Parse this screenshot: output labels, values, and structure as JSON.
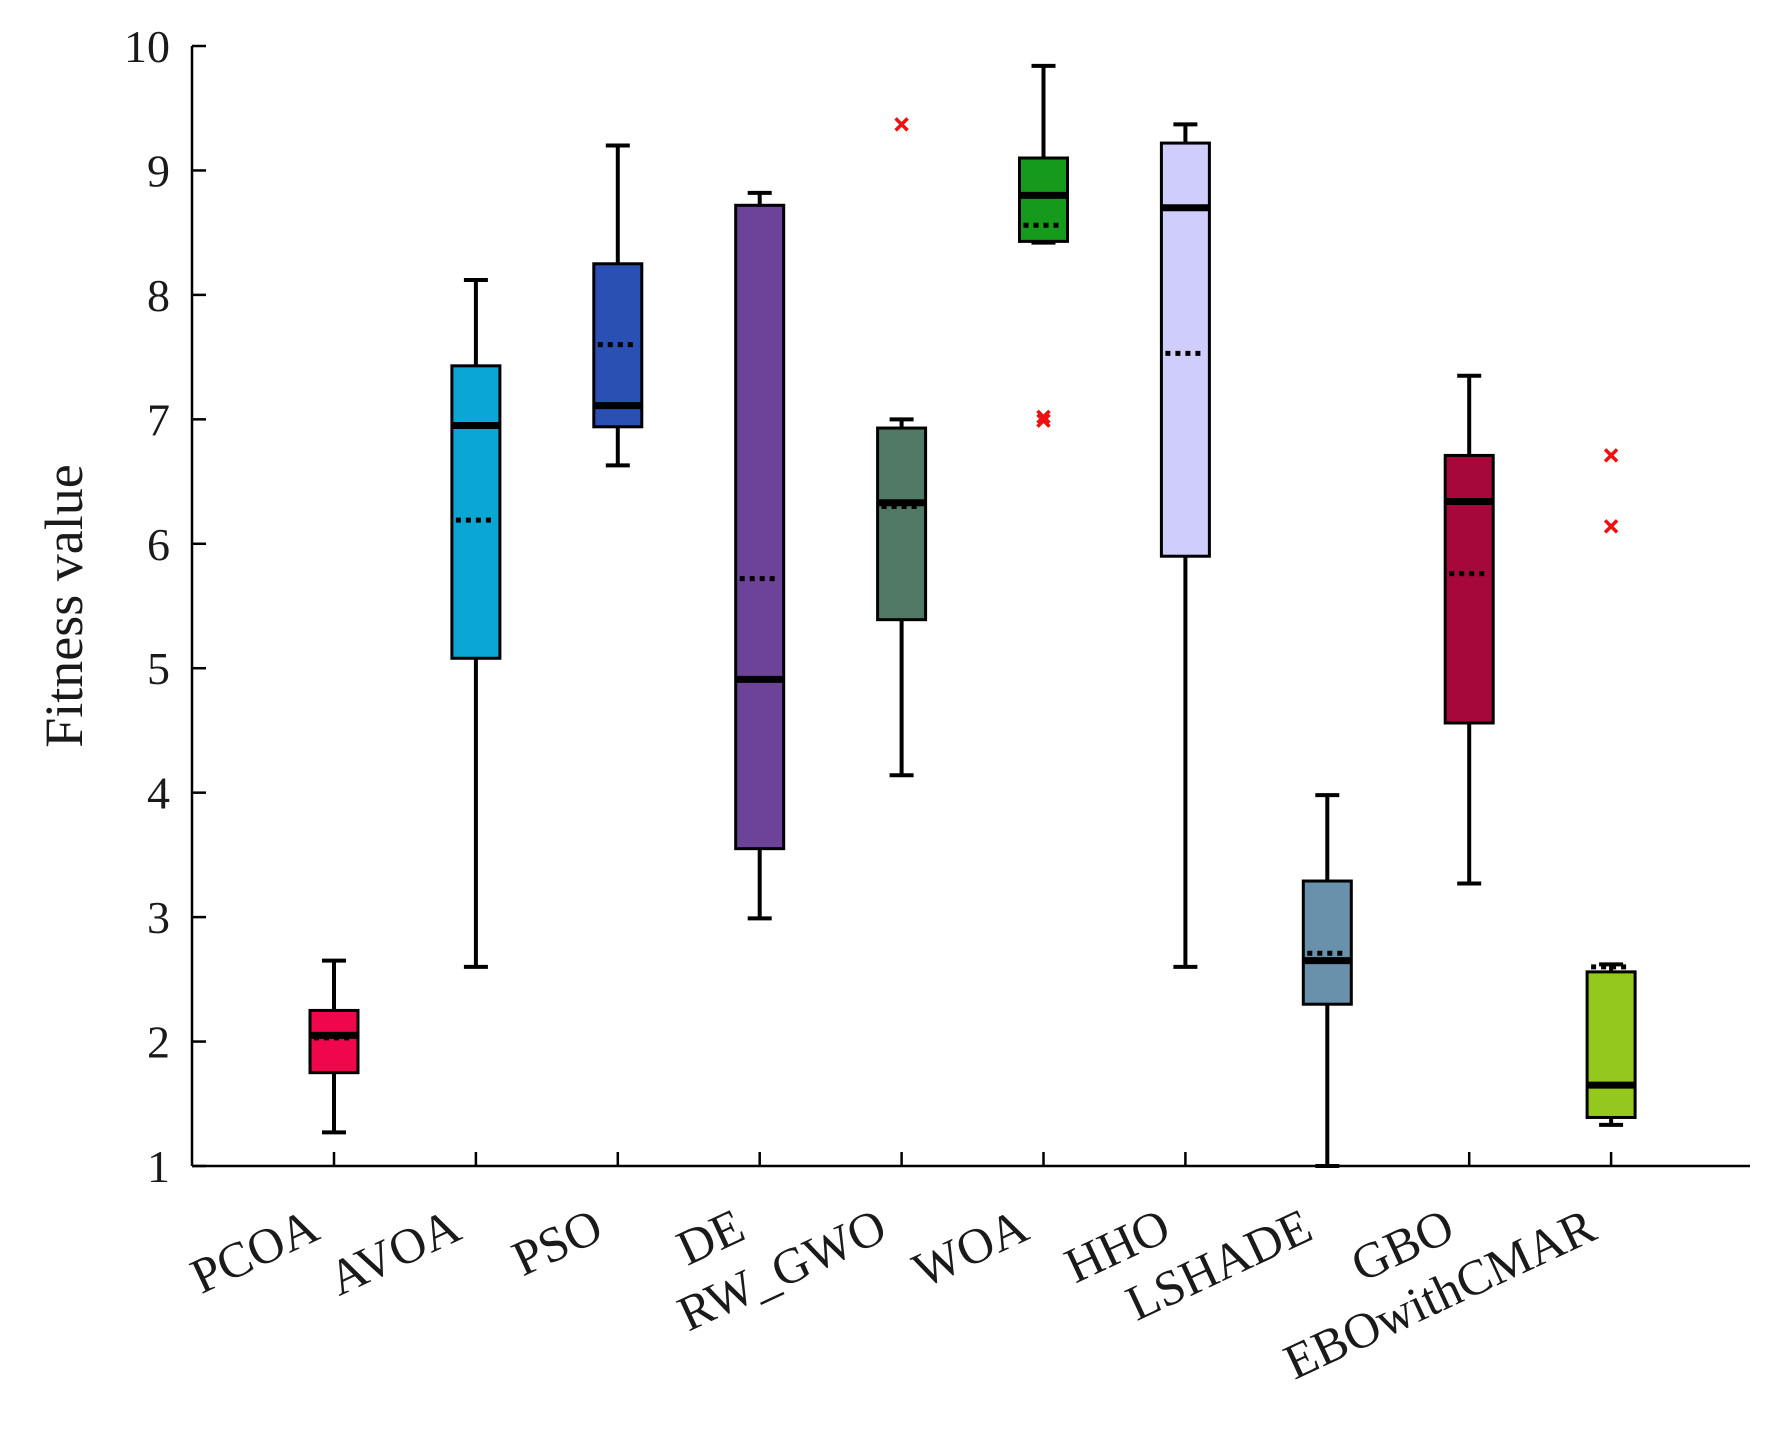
{
  "chart_data": {
    "type": "boxplot",
    "title": "",
    "xlabel": "",
    "ylabel": "Fitness value",
    "ylim": [
      1,
      10
    ],
    "yticks": [
      "1",
      "2",
      "3",
      "4",
      "5",
      "6",
      "7",
      "8",
      "9",
      "10"
    ],
    "categories": [
      "PCOA",
      "AVOA",
      "PSO",
      "DE",
      "RW_GWO",
      "WOA",
      "HHO",
      "LSHADE",
      "GBO",
      "EBOwithCMAR"
    ],
    "boxes": [
      {
        "name": "PCOA",
        "color": "#f0064a",
        "min": 1.27,
        "q1": 1.75,
        "median": 2.05,
        "mean": 2.03,
        "q3": 2.25,
        "max": 2.65,
        "outliers": []
      },
      {
        "name": "AVOA",
        "color": "#0aa6d4",
        "min": 2.6,
        "q1": 5.08,
        "median": 6.95,
        "mean": 6.19,
        "q3": 7.43,
        "max": 8.12,
        "outliers": []
      },
      {
        "name": "PSO",
        "color": "#2a50b4",
        "min": 6.63,
        "q1": 6.94,
        "median": 7.11,
        "mean": 7.6,
        "q3": 8.25,
        "max": 9.2,
        "outliers": []
      },
      {
        "name": "DE",
        "color": "#6c4398",
        "min": 2.99,
        "q1": 3.55,
        "median": 4.91,
        "mean": 5.72,
        "q3": 8.72,
        "max": 8.82,
        "outliers": []
      },
      {
        "name": "RW_GWO",
        "color": "#527866",
        "min": 4.14,
        "q1": 5.39,
        "median": 6.33,
        "mean": 6.3,
        "q3": 6.93,
        "max": 7.0,
        "outliers": [
          9.37
        ]
      },
      {
        "name": "WOA",
        "color": "#169a1c",
        "min": 8.42,
        "q1": 8.43,
        "median": 8.8,
        "mean": 8.56,
        "q3": 9.1,
        "max": 9.84,
        "outliers": [
          7.02,
          6.99
        ]
      },
      {
        "name": "HHO",
        "color": "#cfcdf9",
        "min": 2.6,
        "q1": 5.9,
        "median": 8.7,
        "mean": 7.53,
        "q3": 9.22,
        "max": 9.37,
        "outliers": []
      },
      {
        "name": "LSHADE",
        "color": "#6a91ab",
        "min": 1.0,
        "q1": 2.3,
        "median": 2.65,
        "mean": 2.71,
        "q3": 3.29,
        "max": 3.98,
        "outliers": []
      },
      {
        "name": "GBO",
        "color": "#a7083c",
        "min": 3.27,
        "q1": 4.56,
        "median": 6.34,
        "mean": 5.76,
        "q3": 6.71,
        "max": 7.35,
        "outliers": []
      },
      {
        "name": "EBOwithCMAR",
        "color": "#94c81c",
        "min": 1.33,
        "q1": 1.39,
        "median": 1.65,
        "mean": 2.6,
        "q3": 2.56,
        "max": 2.62,
        "outliers": [
          6.71,
          6.14
        ]
      }
    ],
    "outlier_color": "#ee1111",
    "grid": false,
    "legend": "none"
  }
}
